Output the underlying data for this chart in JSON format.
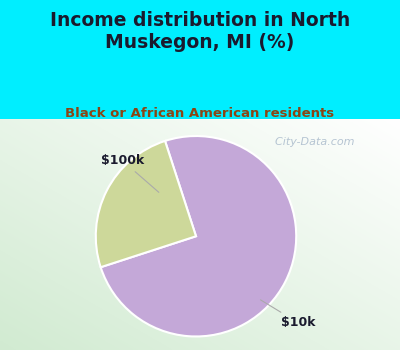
{
  "title": "Income distribution in North\nMuskegon, MI (%)",
  "subtitle": "Black or African American residents",
  "slices": [
    75,
    25
  ],
  "labels": [
    "$10k",
    "$100k"
  ],
  "colors": [
    "#c4a8d8",
    "#cdd89a"
  ],
  "title_color": "#1a1a2e",
  "subtitle_color": "#8b4513",
  "bg_top_color": "#00eeff",
  "chart_bg_colors": [
    "#ffffff",
    "#d4edd4"
  ],
  "start_angle": 108,
  "watermark": "  City-Data.com",
  "watermark_color": "#aabbcc"
}
